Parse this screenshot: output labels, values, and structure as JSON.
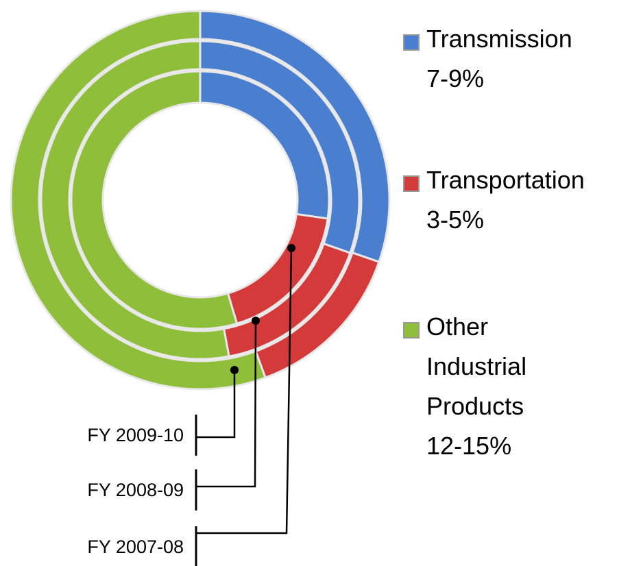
{
  "chart_data": {
    "type": "multi-ring-donut",
    "categories": [
      "FY 2007-08",
      "FY 2008-09",
      "FY 2009-10"
    ],
    "series": [
      {
        "name": "Transmission",
        "range": "7-9%",
        "color": "#4a7fd0",
        "values": [
          27.3,
          30.4,
          30.3
        ]
      },
      {
        "name": "Transportation",
        "range": "3-5%",
        "color": "#d53a3a",
        "values": [
          18.1,
          16.7,
          14.1
        ]
      },
      {
        "name": "Other Industrial Products",
        "range": "12-15%",
        "color": "#8fbe3a",
        "values": [
          54.6,
          52.9,
          55.6
        ]
      }
    ]
  }
}
